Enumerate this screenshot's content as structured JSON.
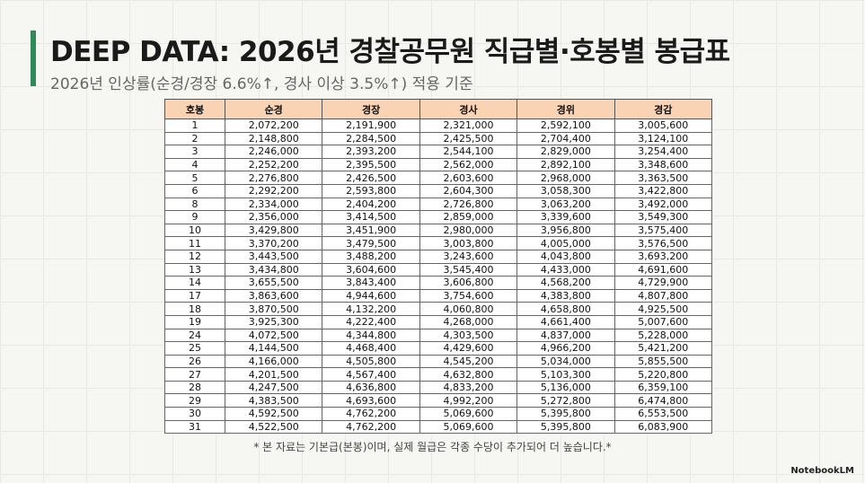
{
  "header": {
    "title": "DEEP DATA: 2026년 경찰공무원 직급별·호봉별 봉급표",
    "subtitle": "2026년 인상률(순경/경장 6.6%↑, 경사 이상 3.5%↑) 적용 기준"
  },
  "table": {
    "columns": [
      "호봉",
      "순경",
      "경장",
      "경사",
      "경위",
      "경감"
    ],
    "rows": [
      [
        "1",
        "2,072,200",
        "2,191,900",
        "2,321,000",
        "2,592,100",
        "3,005,600"
      ],
      [
        "2",
        "2,148,800",
        "2,284,500",
        "2,425,500",
        "2,704,400",
        "3,124,100"
      ],
      [
        "3",
        "2,246,000",
        "2,393,200",
        "2,544,100",
        "2,829,000",
        "3,254,400"
      ],
      [
        "4",
        "2,252,200",
        "2,395,500",
        "2,562,000",
        "2,892,100",
        "3,348,600"
      ],
      [
        "5",
        "2,276,800",
        "2,426,500",
        "2,603,600",
        "2,968,000",
        "3,363,500"
      ],
      [
        "6",
        "2,292,200",
        "2,593,800",
        "2,604,300",
        "3,058,300",
        "3,422,800"
      ],
      [
        "8",
        "2,334,000",
        "2,404,200",
        "2,726,800",
        "3,063,200",
        "3,492,000"
      ],
      [
        "9",
        "2,356,000",
        "3,414,500",
        "2,859,000",
        "3,339,600",
        "3,549,300"
      ],
      [
        "10",
        "3,429,800",
        "3,451,900",
        "2,980,000",
        "3,956,800",
        "3,575,400"
      ],
      [
        "11",
        "3,370,200",
        "3,479,500",
        "3,003,800",
        "4,005,000",
        "3,576,500"
      ],
      [
        "12",
        "3,443,500",
        "3,488,200",
        "3,243,600",
        "4,043,800",
        "3,693,200"
      ],
      [
        "13",
        "3,434,800",
        "3,604,600",
        "3,545,400",
        "4,433,000",
        "4,691,600"
      ],
      [
        "14",
        "3,655,500",
        "3,843,400",
        "3,606,800",
        "4,568,200",
        "4,729,900"
      ],
      [
        "17",
        "3,863,600",
        "4,944,600",
        "3,754,600",
        "4,383,800",
        "4,807,800"
      ],
      [
        "18",
        "3,870,500",
        "4,132,200",
        "4,060,800",
        "4,658,800",
        "4,925,500"
      ],
      [
        "19",
        "3,925,300",
        "4,222,400",
        "4,268,000",
        "4,661,400",
        "5,007,600"
      ],
      [
        "24",
        "4,072,500",
        "4,344,800",
        "4,303,500",
        "4,837,000",
        "5,228,000"
      ],
      [
        "25",
        "4,144,500",
        "4,468,400",
        "4,429,600",
        "4,966,200",
        "5,421,200"
      ],
      [
        "26",
        "4,166,000",
        "4,505,800",
        "4,545,200",
        "5,034,000",
        "5,855,500"
      ],
      [
        "27",
        "4,201,500",
        "4,567,400",
        "4,632,800",
        "5,103,300",
        "5,220,800"
      ],
      [
        "28",
        "4,247,500",
        "4,636,800",
        "4,833,200",
        "5,136,000",
        "6,359,100"
      ],
      [
        "29",
        "4,383,500",
        "4,693,600",
        "4,992,200",
        "5,272,800",
        "6,474,800"
      ],
      [
        "30",
        "4,592,500",
        "4,762,200",
        "5,069,600",
        "5,395,800",
        "6,553,500"
      ],
      [
        "31",
        "4,522,500",
        "4,762,200",
        "5,069,600",
        "5,395,800",
        "6,083,900"
      ]
    ]
  },
  "footnote": "* 본 자료는 기본급(본봉)이며, 실제 월급은 각종 수당이 추가되어 더 높습니다.*",
  "brand": "NotebookLM"
}
